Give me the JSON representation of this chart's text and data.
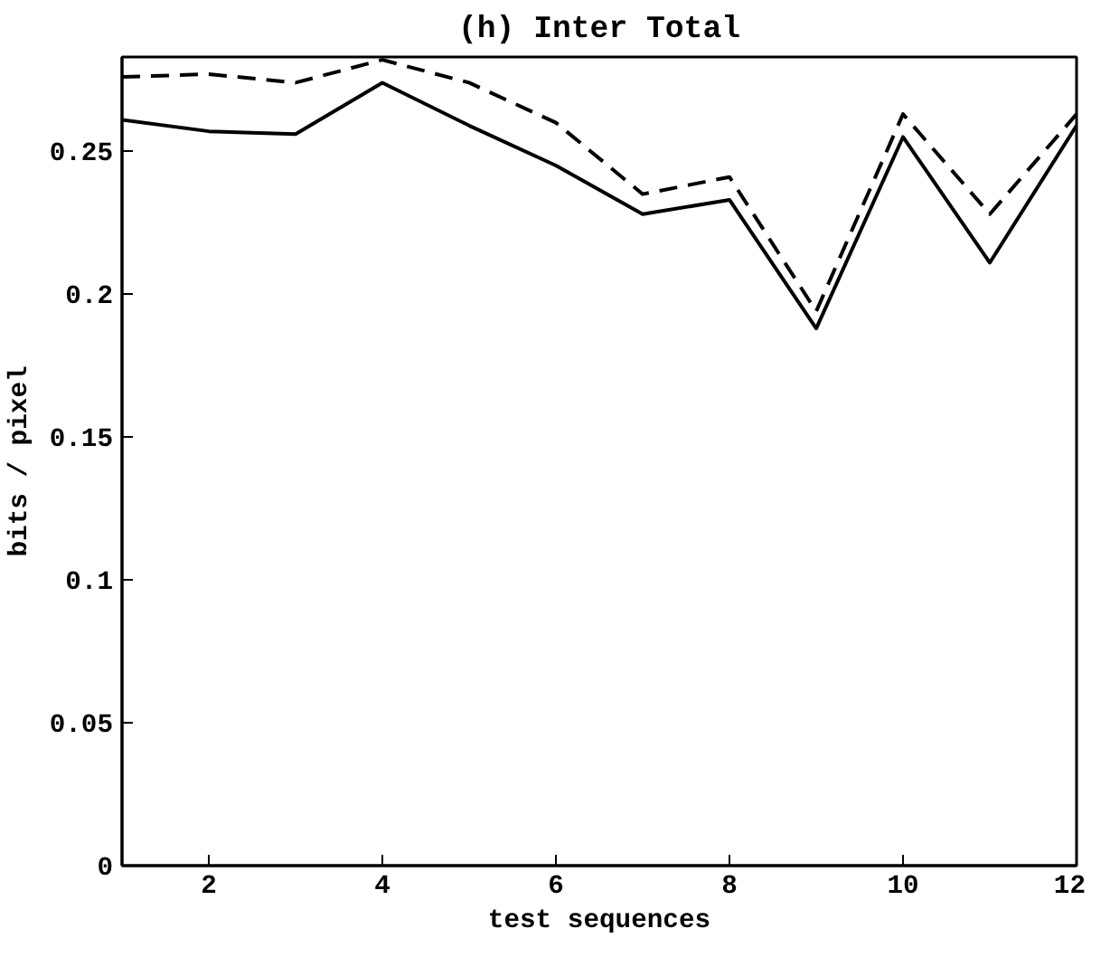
{
  "chart_data": {
    "type": "line",
    "title": "(h) Inter Total",
    "xlabel": "test sequences",
    "ylabel": "bits / pixel",
    "x": [
      1,
      2,
      3,
      4,
      5,
      6,
      7,
      8,
      9,
      10,
      11,
      12
    ],
    "series": [
      {
        "color": "#000000",
        "line_style": "solid",
        "values": [
          0.261,
          0.257,
          0.256,
          0.274,
          0.259,
          0.245,
          0.228,
          0.233,
          0.188,
          0.255,
          0.211,
          0.259
        ]
      },
      {
        "color": "#000000",
        "line_style": "dashed",
        "values": [
          0.276,
          0.277,
          0.274,
          0.282,
          0.274,
          0.26,
          0.235,
          0.241,
          0.194,
          0.263,
          0.228,
          0.263
        ]
      }
    ],
    "xlim": [
      1,
      12
    ],
    "xticks": [
      2,
      4,
      6,
      8,
      10,
      12
    ],
    "ylim": [
      0,
      0.283
    ],
    "yticks": [
      0,
      0.05,
      0.1,
      0.15,
      0.2,
      0.25
    ],
    "grid": false,
    "marker": "none"
  }
}
